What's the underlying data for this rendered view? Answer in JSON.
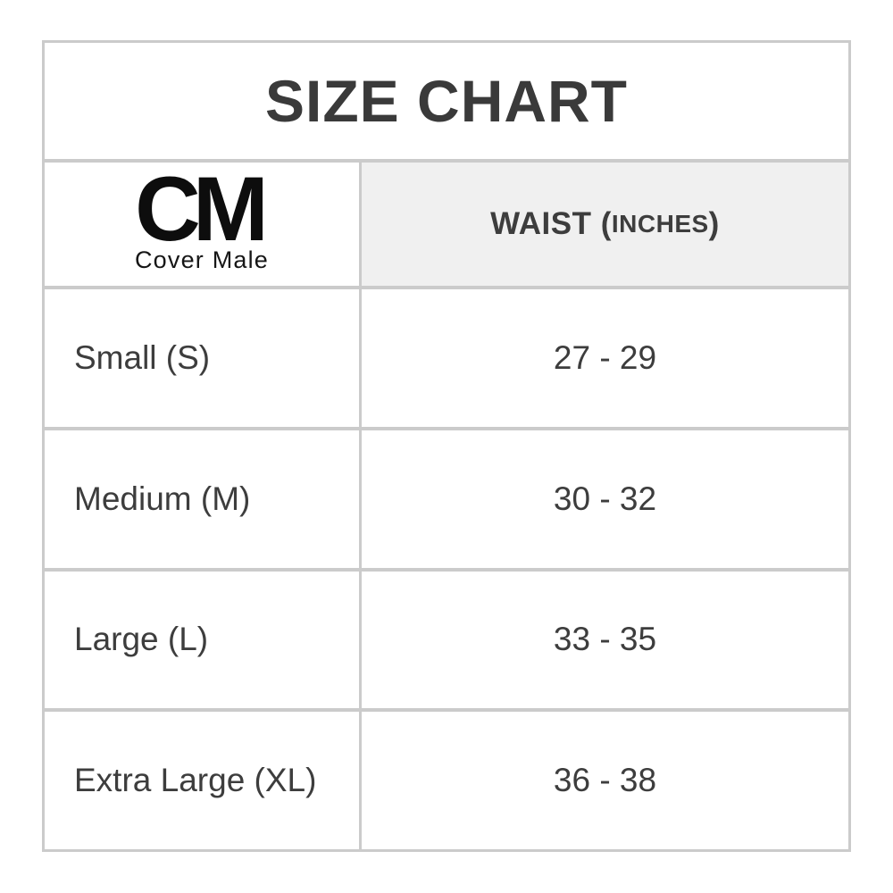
{
  "colors": {
    "border": "#cbcbcb",
    "header_bg": "#f0f0f0",
    "title_text": "#3a3a3a",
    "body_text": "#3d3d3d",
    "logo_text": "#0d0d0d",
    "background": "#ffffff"
  },
  "size_chart": {
    "title": "SIZE CHART",
    "brand": {
      "initials": "CM",
      "name": "Cover Male"
    },
    "column_header": {
      "prefix": "WAIST (",
      "unit": "INCHES",
      "suffix": ")"
    },
    "rows": [
      {
        "size": "Small (S)",
        "waist": "27 - 29"
      },
      {
        "size": "Medium (M)",
        "waist": "30 - 32"
      },
      {
        "size": "Large (L)",
        "waist": "33 - 35"
      },
      {
        "size": "Extra Large (XL)",
        "waist": "36 - 38"
      }
    ]
  }
}
